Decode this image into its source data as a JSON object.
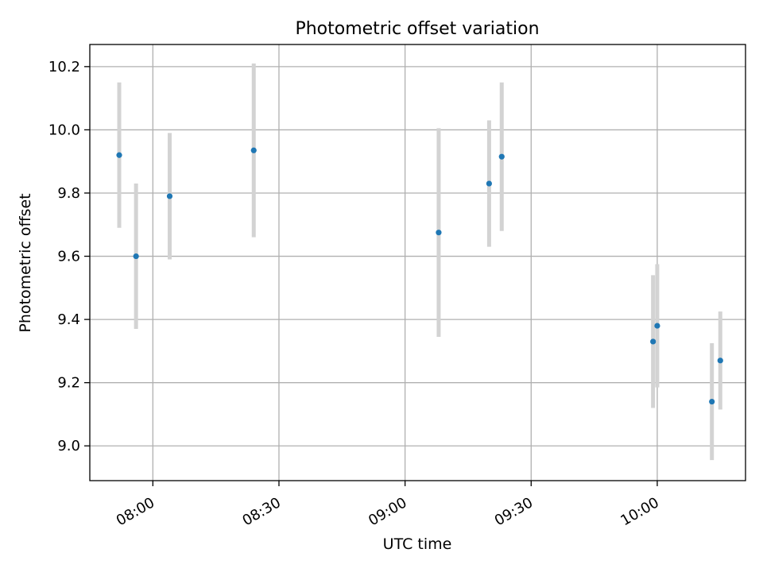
{
  "chart_data": {
    "type": "scatter",
    "title": "Photometric offset variation",
    "xlabel": "UTC time",
    "ylabel": "Photometric offset",
    "x_axis_type": "time",
    "xlim": [
      "07:45",
      "10:21"
    ],
    "ylim": [
      8.89,
      10.27
    ],
    "x_ticks": [
      "08:00",
      "08:30",
      "09:00",
      "09:30",
      "10:00"
    ],
    "y_ticks": [
      "9.0",
      "9.2",
      "9.4",
      "9.6",
      "9.8",
      "10.0",
      "10.2"
    ],
    "grid": true,
    "legend": "none",
    "colors": {
      "marker": "#1f77b4",
      "errorbar": "#d3d3d3",
      "grid": "#b0b0b0"
    },
    "points": [
      {
        "x": "07:52",
        "y": 9.92,
        "yerr": 0.23
      },
      {
        "x": "07:56",
        "y": 9.6,
        "yerr": 0.23
      },
      {
        "x": "08:04",
        "y": 9.79,
        "yerr": 0.2
      },
      {
        "x": "08:24",
        "y": 9.935,
        "yerr": 0.275
      },
      {
        "x": "09:08",
        "y": 9.675,
        "yerr": 0.33
      },
      {
        "x": "09:20",
        "y": 9.83,
        "yerr": 0.2
      },
      {
        "x": "09:23",
        "y": 9.915,
        "yerr": 0.235
      },
      {
        "x": "09:59",
        "y": 9.33,
        "yerr": 0.21
      },
      {
        "x": "10:00",
        "y": 9.38,
        "yerr": 0.195
      },
      {
        "x": "10:13",
        "y": 9.14,
        "yerr": 0.185
      },
      {
        "x": "10:15",
        "y": 9.27,
        "yerr": 0.155
      }
    ]
  }
}
